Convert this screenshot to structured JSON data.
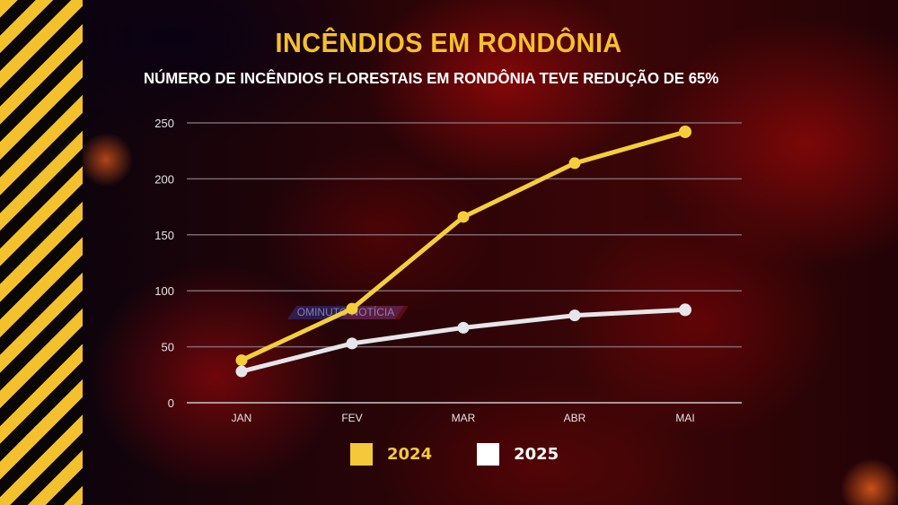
{
  "title": "INCÊNDIOS EM RONDÔNIA",
  "subtitle": "NÚMERO DE INCÊNDIOS FLORESTAIS EM RONDÔNIA TEVE REDUÇÃO DE 65%",
  "watermark": "OMINUTO NOTÍCIA",
  "colors": {
    "series_2024": "#f5cf3a",
    "series_2025": "#e6e6ea",
    "title": "#f5c02c",
    "stripes_yellow": "#f3c12b",
    "stripes_black": "#0a0608",
    "gridline": "#8a7a80"
  },
  "legend": [
    {
      "label": "2024",
      "color": "#f5c83a"
    },
    {
      "label": "2025",
      "color": "#ffffff"
    }
  ],
  "chart_data": {
    "type": "line",
    "title": "INCÊNDIOS EM RONDÔNIA",
    "subtitle": "NÚMERO DE INCÊNDIOS FLORESTAIS EM RONDÔNIA TEVE REDUÇÃO DE 65%",
    "xlabel": "",
    "ylabel": "",
    "categories": [
      "JAN",
      "FEV",
      "MAR",
      "ABR",
      "MAI"
    ],
    "series": [
      {
        "name": "2024",
        "values": [
          38,
          84,
          166,
          214,
          242
        ]
      },
      {
        "name": "2025",
        "values": [
          28,
          53,
          67,
          78,
          83
        ]
      }
    ],
    "ylim": [
      0,
      250
    ],
    "yticks": [
      0,
      50,
      100,
      150,
      200,
      250
    ],
    "grid": true,
    "legend_position": "bottom"
  }
}
